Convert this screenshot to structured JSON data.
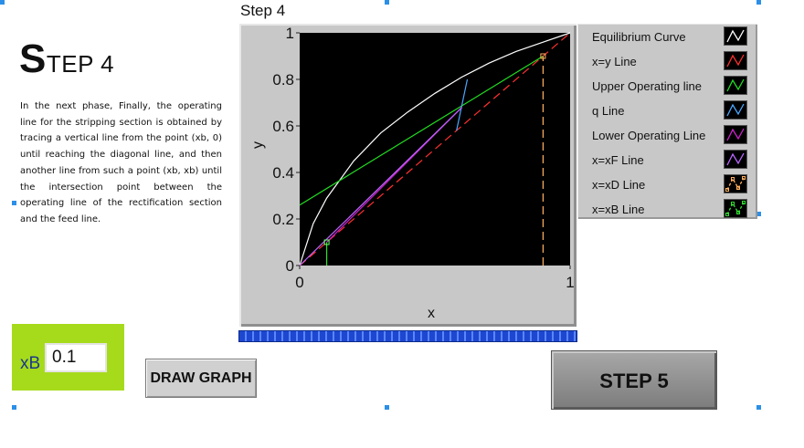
{
  "step": {
    "title_initial": "S",
    "title_rest": "TEP 4",
    "description": "In the next phase, Finally, the operating line for the stripping section is obtained by tracing a vertical line from the point (xb, 0) until reaching the diagonal line, and then another line from such a point (xb, xb) until the intersection point between the operating line of the rectification section and the feed line."
  },
  "graph": {
    "label": "Step 4"
  },
  "legend": {
    "items": [
      {
        "label": "Equilibrium Curve",
        "color": "#ffffff"
      },
      {
        "label": "x=y Line",
        "color": "#ff3030"
      },
      {
        "label": "Upper Operating line",
        "color": "#22dd22"
      },
      {
        "label": "q Line",
        "color": "#4aa8ff"
      },
      {
        "label": "Lower Operating Line",
        "color": "#cc22cc"
      },
      {
        "label": "x=xF Line",
        "color": "#bb66ff"
      },
      {
        "label": "x=xD Line",
        "color": "#ffb060"
      },
      {
        "label": "x=xB Line",
        "color": "#33dd33"
      }
    ]
  },
  "controls": {
    "xb_label": "xB",
    "xb_value": "0.1",
    "draw_button": "DRAW GRAPH",
    "next_button": "STEP 5"
  },
  "chart_data": {
    "type": "line",
    "title": "",
    "xlabel": "x",
    "ylabel": "y",
    "xlim": [
      0,
      1
    ],
    "ylim": [
      0,
      1
    ],
    "x_ticks": [
      "0",
      "1"
    ],
    "y_ticks": [
      "0",
      "0.2",
      "0.4",
      "0.6",
      "0.8",
      "1"
    ],
    "grid": false,
    "legend_position": "right",
    "series": [
      {
        "name": "Equilibrium Curve",
        "color": "#ffffff",
        "style": "solid",
        "points": [
          [
            0,
            0
          ],
          [
            0.05,
            0.18
          ],
          [
            0.1,
            0.29
          ],
          [
            0.2,
            0.45
          ],
          [
            0.3,
            0.57
          ],
          [
            0.4,
            0.66
          ],
          [
            0.5,
            0.74
          ],
          [
            0.6,
            0.81
          ],
          [
            0.7,
            0.87
          ],
          [
            0.8,
            0.92
          ],
          [
            0.9,
            0.96
          ],
          [
            1,
            1
          ]
        ]
      },
      {
        "name": "x=y Line",
        "color": "#ff3030",
        "style": "dashed",
        "points": [
          [
            0,
            0
          ],
          [
            1,
            1
          ]
        ]
      },
      {
        "name": "Upper Operating line",
        "color": "#22dd22",
        "style": "solid",
        "points": [
          [
            0,
            0.26
          ],
          [
            0.9,
            0.9
          ]
        ]
      },
      {
        "name": "q Line",
        "color": "#4aa8ff",
        "style": "solid",
        "points": [
          [
            0.58,
            0.58
          ],
          [
            0.62,
            0.8
          ]
        ]
      },
      {
        "name": "Lower Operating Line",
        "color": "#cc22cc",
        "style": "solid",
        "points": [
          [
            0.1,
            0.1
          ],
          [
            0.6,
            0.68
          ]
        ]
      },
      {
        "name": "x=xF Line",
        "color": "#bb66ff",
        "style": "solid",
        "points": [
          [
            0,
            0
          ],
          [
            0.6,
            0.68
          ]
        ]
      },
      {
        "name": "x=xD Line",
        "color": "#ffb060",
        "style": "dashed",
        "points": [
          [
            0.9,
            0
          ],
          [
            0.9,
            0.9
          ]
        ]
      },
      {
        "name": "x=xB Line",
        "color": "#33dd33",
        "style": "solid",
        "points": [
          [
            0.1,
            0
          ],
          [
            0.1,
            0.1
          ]
        ]
      }
    ],
    "markers": [
      {
        "x": 0.1,
        "y": 0.1,
        "color": "#66ff66"
      },
      {
        "x": 0.9,
        "y": 0.9,
        "color": "#ffb060"
      }
    ]
  }
}
